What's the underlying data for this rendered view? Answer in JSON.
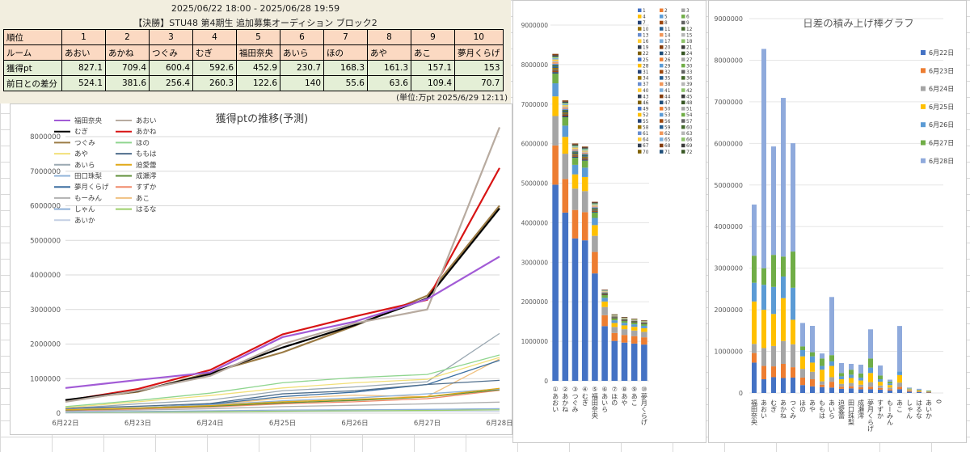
{
  "header": {
    "period": "2025/06/22 18:00 - 2025/06/28 19:59",
    "title": "【決勝】STU48 第4期生 追加募集オーディション ブロック2",
    "unit_note": "(単位:万pt  2025/6/29 12:11)"
  },
  "table": {
    "rows": [
      {
        "label": "順位",
        "cells": [
          "1",
          "2",
          "3",
          "4",
          "5",
          "6",
          "7",
          "8",
          "9",
          "10"
        ]
      },
      {
        "label": "ルーム",
        "cells": [
          "あおい",
          "あかね",
          "つぐみ",
          "むぎ",
          "福田奈央",
          "あいら",
          "ほの",
          "あや",
          "あこ",
          "夢月くらげ"
        ]
      },
      {
        "label": "獲得pt",
        "cells": [
          "827.1",
          "709.4",
          "600.4",
          "592.6",
          "452.9",
          "230.7",
          "168.3",
          "161.3",
          "157.1",
          "153"
        ]
      },
      {
        "label": "前日との差分",
        "cells": [
          "524.1",
          "381.6",
          "256.4",
          "260.3",
          "122.6",
          "140",
          "55.6",
          "63.6",
          "109.4",
          "70.7"
        ]
      }
    ]
  },
  "chart_data": [
    {
      "type": "line",
      "title": "獲得ptの推移(予測)",
      "categories": [
        "6月22日",
        "6月23日",
        "6月24日",
        "6月25日",
        "6月26日",
        "6月27日",
        "6月28日"
      ],
      "ylim": [
        0,
        8000000
      ],
      "yticks": [
        "0",
        "1000000",
        "2000000",
        "3000000",
        "4000000",
        "5000000",
        "6000000",
        "7000000",
        "8000000"
      ],
      "grid": true,
      "legend_position": "top-left",
      "series": [
        {
          "name": "福田奈央",
          "color": "#a25bd6",
          "values": [
            730000,
            960000,
            1180000,
            2200000,
            2650000,
            3300000,
            4530000
          ]
        },
        {
          "name": "あおい",
          "color": "#b8aba0",
          "values": [
            330000,
            650000,
            1080000,
            2000000,
            2600000,
            3000000,
            8271000
          ]
        },
        {
          "name": "むぎ",
          "color": "#000000",
          "values": [
            380000,
            640000,
            1130000,
            1900000,
            2550000,
            3320000,
            5926000
          ]
        },
        {
          "name": "あかね",
          "color": "#d81414",
          "values": [
            360000,
            700000,
            1250000,
            2280000,
            2800000,
            3280000,
            7094000
          ]
        },
        {
          "name": "つぐみ",
          "color": "#9b7b45",
          "values": [
            370000,
            620000,
            1170000,
            1760000,
            2530000,
            3400000,
            6004000
          ]
        },
        {
          "name": "ほの",
          "color": "#8fd58f",
          "values": [
            190000,
            370000,
            580000,
            880000,
            1030000,
            1120000,
            1683000
          ]
        },
        {
          "name": "あや",
          "color": "#f2e07a",
          "values": [
            160000,
            330000,
            510000,
            730000,
            880000,
            980000,
            1613000
          ]
        },
        {
          "name": "ももは",
          "color": "#4f6e8c",
          "values": [
            140000,
            200000,
            280000,
            560000,
            650000,
            830000,
            950000
          ]
        },
        {
          "name": "あいら",
          "color": "#9aa8b2",
          "values": [
            130000,
            270000,
            380000,
            650000,
            760000,
            910000,
            2307000
          ]
        },
        {
          "name": "迫愛蕾",
          "color": "#e0a818",
          "values": [
            100000,
            150000,
            220000,
            330000,
            400000,
            480000,
            720000
          ]
        },
        {
          "name": "田口珠梨",
          "color": "#8fb3d9",
          "values": [
            110000,
            160000,
            240000,
            360000,
            440000,
            560000,
            700000
          ]
        },
        {
          "name": "成瀬澪",
          "color": "#5f8f3a",
          "values": [
            90000,
            140000,
            200000,
            300000,
            370000,
            470000,
            680000
          ]
        },
        {
          "name": "夢月くらげ",
          "color": "#3c6fa0",
          "values": [
            90000,
            150000,
            260000,
            480000,
            610000,
            830000,
            1530000
          ]
        },
        {
          "name": "すずか",
          "color": "#f08a6a",
          "values": [
            80000,
            120000,
            180000,
            270000,
            330000,
            420000,
            660000
          ]
        },
        {
          "name": "もーみん",
          "color": "#b0b0b0",
          "values": [
            60000,
            90000,
            130000,
            190000,
            230000,
            270000,
            320000
          ]
        },
        {
          "name": "あこ",
          "color": "#f0c080",
          "values": [
            90000,
            150000,
            250000,
            430000,
            520000,
            480000,
            1571000
          ]
        },
        {
          "name": "しゃん",
          "color": "#8fb0d8",
          "values": [
            30000,
            50000,
            70000,
            90000,
            100000,
            110000,
            130000
          ]
        },
        {
          "name": "はるな",
          "color": "#9ccf6a",
          "values": [
            20000,
            30000,
            40000,
            60000,
            70000,
            80000,
            100000
          ]
        },
        {
          "name": "あいか",
          "color": "#c3cfe3",
          "values": [
            10000,
            20000,
            30000,
            40000,
            50000,
            60000,
            60000
          ]
        }
      ]
    },
    {
      "type": "bar",
      "stacked": true,
      "ylim": [
        0,
        9000000
      ],
      "yticks": [
        "0",
        "1000000",
        "2000000",
        "3000000",
        "4000000",
        "5000000",
        "6000000",
        "7000000",
        "8000000",
        "9000000"
      ],
      "categories": [
        "①あおい",
        "②あかね",
        "③つぐみ",
        "④むぎ",
        "⑤福田奈央",
        "⑥あいら",
        "⑦ほの",
        "⑧あや",
        "⑨あこ",
        "⑩夢月くらげ"
      ],
      "totals": [
        8271000,
        7094000,
        6004000,
        5926000,
        4529000,
        2307000,
        1683000,
        1613000,
        1571000,
        1530000
      ],
      "legend_items": [
        "1",
        "2",
        "3",
        "4",
        "5",
        "6",
        "7",
        "8",
        "9",
        "10",
        "11",
        "12",
        "13",
        "14",
        "15",
        "16",
        "17",
        "18",
        "19",
        "20",
        "21",
        "22",
        "23",
        "24",
        "25",
        "26",
        "27",
        "28",
        "29",
        "30",
        "31",
        "32",
        "33",
        "34",
        "35",
        "36",
        "37",
        "38",
        "39",
        "40",
        "41",
        "42",
        "43",
        "44",
        "45",
        "46",
        "47",
        "48",
        "49",
        "50",
        "51",
        "52",
        "53",
        "54",
        "55",
        "56",
        "57",
        "58",
        "59",
        "60",
        "61",
        "62",
        "63",
        "64",
        "65",
        "66",
        "67",
        "68",
        "69",
        "70",
        "71",
        "72"
      ],
      "palette": [
        "#4472c4",
        "#ed7d31",
        "#a5a5a5",
        "#ffc000",
        "#5b9bd5",
        "#70ad47",
        "#264478",
        "#9e480e",
        "#636363",
        "#997300",
        "#255e91",
        "#43682b",
        "#698ed0",
        "#f1975a",
        "#b7b7b7",
        "#ffcd33",
        "#7cafdd",
        "#8cc168",
        "#333f50",
        "#843c0c",
        "#3a3a3a",
        "#7f6000",
        "#1f4e79",
        "#375623"
      ]
    },
    {
      "type": "bar",
      "stacked": true,
      "title": "日差の積み上げ棒グラフ",
      "ylim": [
        0,
        9000000
      ],
      "yticks": [
        "0",
        "1000000",
        "2000000",
        "3000000",
        "4000000",
        "5000000",
        "6000000",
        "7000000",
        "8000000",
        "9000000"
      ],
      "categories": [
        "福田奈央",
        "あおい",
        "むぎ",
        "あかね",
        "つぐみ",
        "ほの",
        "あや",
        "ももは",
        "あいら",
        "迫愛蕾",
        "田口珠梨",
        "成瀬澪",
        "夢月くらげ",
        "すずか",
        "もーみん",
        "あこ",
        "しゃん",
        "はるな",
        "あいか",
        "0"
      ],
      "series": [
        {
          "name": "6月22日",
          "color": "#4472c4",
          "values": [
            730000,
            330000,
            380000,
            360000,
            370000,
            190000,
            160000,
            140000,
            130000,
            100000,
            110000,
            90000,
            90000,
            80000,
            60000,
            90000,
            30000,
            20000,
            10000,
            0
          ]
        },
        {
          "name": "6月23日",
          "color": "#ed7d31",
          "values": [
            230000,
            320000,
            260000,
            340000,
            250000,
            180000,
            170000,
            60000,
            140000,
            50000,
            50000,
            50000,
            60000,
            40000,
            30000,
            60000,
            20000,
            10000,
            10000,
            0
          ]
        },
        {
          "name": "6月24日",
          "color": "#a5a5a5",
          "values": [
            220000,
            430000,
            490000,
            550000,
            550000,
            210000,
            180000,
            80000,
            110000,
            70000,
            80000,
            60000,
            110000,
            60000,
            40000,
            100000,
            20000,
            10000,
            10000,
            0
          ]
        },
        {
          "name": "6月25日",
          "color": "#ffc000",
          "values": [
            1020000,
            920000,
            770000,
            1030000,
            590000,
            300000,
            220000,
            280000,
            270000,
            110000,
            120000,
            100000,
            220000,
            90000,
            60000,
            180000,
            20000,
            20000,
            10000,
            0
          ]
        },
        {
          "name": "6月26日",
          "color": "#5b9bd5",
          "values": [
            450000,
            600000,
            650000,
            520000,
            770000,
            150000,
            150000,
            90000,
            110000,
            70000,
            80000,
            70000,
            130000,
            60000,
            40000,
            90000,
            10000,
            10000,
            10000,
            0
          ]
        },
        {
          "name": "6月27日",
          "color": "#70ad47",
          "values": [
            650000,
            400000,
            770000,
            480000,
            870000,
            90000,
            100000,
            180000,
            150000,
            80000,
            120000,
            100000,
            220000,
            90000,
            40000,
            -40000,
            10000,
            10000,
            10000,
            0
          ]
        },
        {
          "name": "6月28日",
          "color": "#8faadc",
          "values": [
            1230000,
            5271000,
            2606000,
            3814000,
            2604000,
            563000,
            633000,
            120000,
            1397000,
            240000,
            140000,
            210000,
            700000,
            240000,
            50000,
            1091000,
            20000,
            20000,
            0,
            0
          ]
        }
      ]
    }
  ]
}
